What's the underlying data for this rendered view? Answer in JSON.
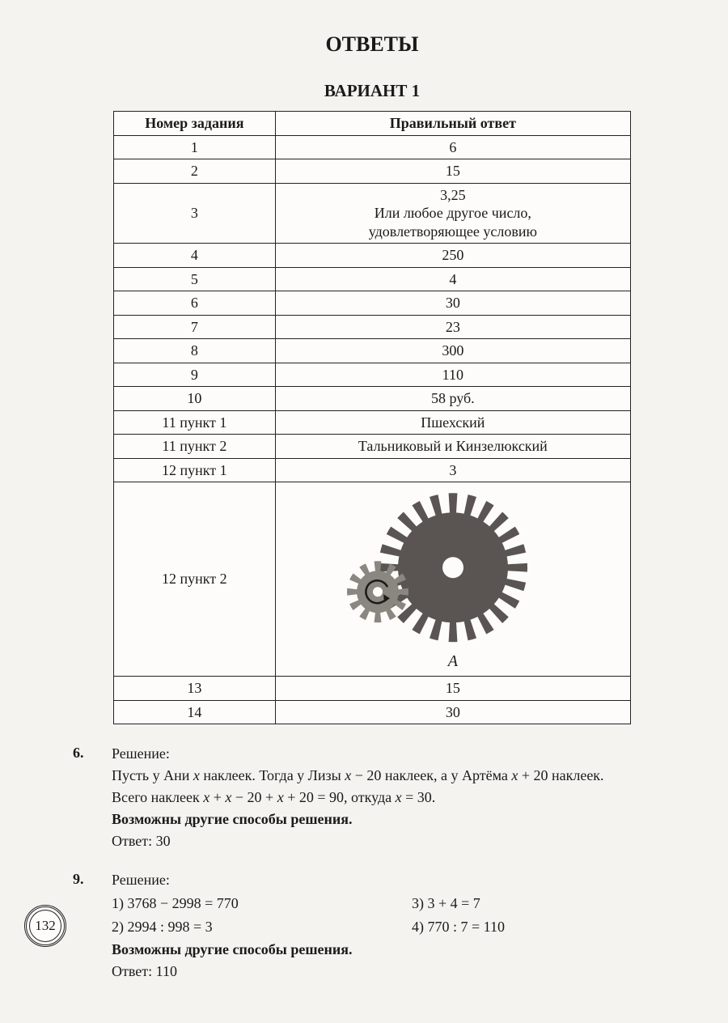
{
  "title": "ОТВЕТЫ",
  "variant": "ВАРИАНТ 1",
  "table": {
    "headers": {
      "num": "Номер задания",
      "ans": "Правильный ответ"
    },
    "rows": [
      {
        "num": "1",
        "ans": "6"
      },
      {
        "num": "2",
        "ans": "15"
      },
      {
        "num": "3",
        "ans_lines": [
          "3,25",
          "Или любое другое число,",
          "удовлетворяющее условию"
        ]
      },
      {
        "num": "4",
        "ans": "250"
      },
      {
        "num": "5",
        "ans": "4"
      },
      {
        "num": "6",
        "ans": "30"
      },
      {
        "num": "7",
        "ans": "23"
      },
      {
        "num": "8",
        "ans": "300"
      },
      {
        "num": "9",
        "ans": "110"
      },
      {
        "num": "10",
        "ans": "58 руб."
      },
      {
        "num": "11 пункт 1",
        "ans": "Пшехский"
      },
      {
        "num": "11 пункт 2",
        "ans": "Тальниковый и Кинзелюкский"
      },
      {
        "num": "12 пункт 1",
        "ans": "3"
      },
      {
        "num": "12 пункт 2",
        "ans_type": "gear",
        "label": "A"
      },
      {
        "num": "13",
        "ans": "15"
      },
      {
        "num": "14",
        "ans": "30"
      }
    ]
  },
  "gear": {
    "big": {
      "teeth": 24,
      "outer_r": 92,
      "inner_r": 68,
      "hole_r": 13,
      "color": "#5a5552"
    },
    "small": {
      "teeth": 12,
      "outer_r": 38,
      "inner_r": 26,
      "hole_r": 6,
      "color": "#8a8680"
    },
    "arrow_color": "#1a1a1a"
  },
  "solutions": [
    {
      "num": "6.",
      "label": "Решение:",
      "paragraphs": [
        "Пусть у Ани <i>x</i> наклеек. Тогда у Лизы <i>x</i> − 20 наклеек, а у Артёма <i>x</i> + 20 наклеек.",
        "Всего наклеек <i>x</i> + <i>x</i> − 20 + <i>x</i> + 20 = 90, откуда <i>x</i> = 30."
      ],
      "note": "Возможны другие способы решения.",
      "answer": "Ответ: 30"
    },
    {
      "num": "9.",
      "label": "Решение:",
      "steps": [
        "1) 3768 − 2998 = 770",
        "3) 3 + 4 = 7",
        "2) 2994 : 998 = 3",
        "4) 770 : 7 = 110"
      ],
      "note": "Возможны другие способы решения.",
      "answer": "Ответ: 110"
    }
  ],
  "page_number": "132"
}
